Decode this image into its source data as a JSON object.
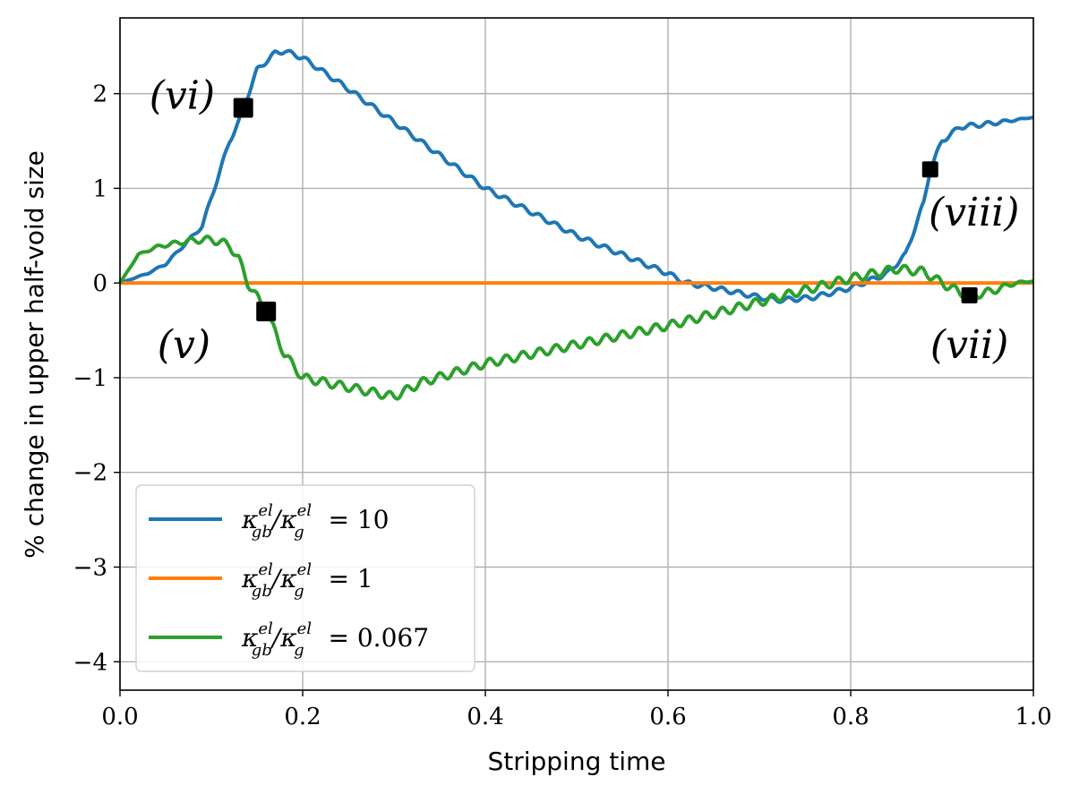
{
  "chart_data": {
    "type": "line",
    "title": "",
    "xlabel": "Stripping time",
    "ylabel": "% change in upper half-void size",
    "xlim": [
      0.0,
      1.0
    ],
    "ylim": [
      -4.3,
      2.8
    ],
    "xticks": [
      0.0,
      0.2,
      0.4,
      0.6,
      0.8,
      1.0
    ],
    "xtick_labels": [
      "0.0",
      "0.2",
      "0.4",
      "0.6",
      "0.8",
      "1.0"
    ],
    "yticks": [
      -4,
      -3,
      -2,
      -1,
      0,
      1,
      2
    ],
    "ytick_labels": [
      "−4",
      "−3",
      "−2",
      "−1",
      "0",
      "1",
      "2"
    ],
    "grid": true,
    "legend_position": "lower-left",
    "series": [
      {
        "name": "κ_gb^el/κ_g^el = 10",
        "legend_lhs": "κ",
        "legend_sub": "gb",
        "legend_sup": "el",
        "legend_mid": "/κ",
        "legend_sub2": "g",
        "legend_sup2": "el",
        "legend_rhs": " = 10",
        "color": "#1f77b4",
        "oscillation": 0.025,
        "x": [
          0.0,
          0.03,
          0.05,
          0.07,
          0.09,
          0.1,
          0.11,
          0.12,
          0.13,
          0.135,
          0.15,
          0.17,
          0.18,
          0.2,
          0.25,
          0.3,
          0.4,
          0.5,
          0.6,
          0.62,
          0.65,
          0.7,
          0.72,
          0.74,
          0.76,
          0.8,
          0.84,
          0.86,
          0.88,
          0.887,
          0.9,
          0.92,
          0.95,
          1.0
        ],
        "y": [
          0.0,
          0.1,
          0.2,
          0.4,
          0.6,
          0.9,
          1.2,
          1.5,
          1.7,
          1.85,
          2.25,
          2.43,
          2.45,
          2.38,
          2.05,
          1.7,
          1.0,
          0.5,
          0.1,
          0.0,
          -0.05,
          -0.15,
          -0.18,
          -0.17,
          -0.15,
          -0.05,
          0.1,
          0.3,
          0.85,
          1.2,
          1.5,
          1.65,
          1.68,
          1.75
        ]
      },
      {
        "name": "κ_gb^el/κ_g^el = 1",
        "legend_lhs": "κ",
        "legend_sub": "gb",
        "legend_sup": "el",
        "legend_mid": "/κ",
        "legend_sub2": "g",
        "legend_sup2": "el",
        "legend_rhs": " = 1",
        "color": "#ff7f0e",
        "oscillation": 0,
        "x": [
          0.0,
          1.0
        ],
        "y": [
          0.0,
          0.0
        ]
      },
      {
        "name": "κ_gb^el/κ_g^el = 0.067",
        "legend_lhs": "κ",
        "legend_sub": "gb",
        "legend_sup": "el",
        "legend_mid": "/κ",
        "legend_sub2": "g",
        "legend_sup2": "el",
        "legend_rhs": " = 0.067",
        "color": "#2ca02c",
        "oscillation": 0.045,
        "x": [
          0.0,
          0.01,
          0.02,
          0.04,
          0.06,
          0.08,
          0.1,
          0.12,
          0.13,
          0.14,
          0.16,
          0.18,
          0.2,
          0.25,
          0.3,
          0.33,
          0.4,
          0.5,
          0.6,
          0.7,
          0.8,
          0.85,
          0.88,
          0.9,
          0.92,
          0.93,
          0.95,
          0.98,
          1.0
        ],
        "y": [
          0.0,
          0.15,
          0.3,
          0.38,
          0.42,
          0.45,
          0.46,
          0.4,
          0.25,
          0.0,
          -0.3,
          -0.75,
          -1.0,
          -1.1,
          -1.2,
          -1.05,
          -0.85,
          -0.65,
          -0.45,
          -0.2,
          0.05,
          0.15,
          0.12,
          0.0,
          -0.1,
          -0.13,
          -0.1,
          0.0,
          0.02
        ]
      }
    ],
    "markers": [
      {
        "label": "(vi)",
        "x": 0.135,
        "y": 1.85,
        "size": "large",
        "label_x": 0.068,
        "label_y": 1.98
      },
      {
        "label": "(v)",
        "x": 0.16,
        "y": -0.3,
        "size": "large",
        "label_x": 0.07,
        "label_y": -0.65
      },
      {
        "label": "(viii)",
        "x": 0.887,
        "y": 1.2,
        "size": "small",
        "label_x": 0.935,
        "label_y": 0.75
      },
      {
        "label": "(vii)",
        "x": 0.93,
        "y": -0.13,
        "size": "small",
        "label_x": 0.93,
        "label_y": -0.65
      }
    ]
  }
}
